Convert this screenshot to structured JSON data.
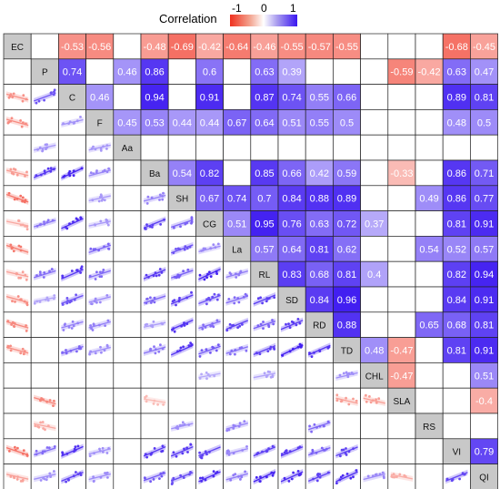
{
  "chart_data": {
    "type": "heatmap",
    "title": "",
    "legend": {
      "title": "Correlation",
      "ticks": [
        "-1",
        "0",
        "1"
      ],
      "range": [
        -1,
        1
      ],
      "colors": {
        "negative": "#f0301e",
        "zero": "#ffffff",
        "positive": "#3a16f0"
      },
      "placement": "top"
    },
    "variables": [
      "EC",
      "P",
      "C",
      "F",
      "Aa",
      "Ba",
      "SH",
      "CG",
      "La",
      "RL",
      "SD",
      "RD",
      "TD",
      "CHL",
      "SLA",
      "RS",
      "VI",
      "QI"
    ],
    "upper_triangle": [
      {
        "row": "EC",
        "values": [
          "",
          "-0.53",
          "-0.56",
          "",
          "-0.48",
          "-0.69",
          "-0.42",
          "-0.64",
          "-0.46",
          "-0.55",
          "-0.57",
          "-0.55",
          "",
          "",
          "",
          "-0.68",
          "-0.45"
        ]
      },
      {
        "row": "P",
        "values": [
          "0.74",
          "",
          "0.46",
          "0.86",
          "",
          "0.6",
          "",
          "0.63",
          "0.39",
          "",
          "",
          "",
          "-0.59",
          "-0.42",
          "0.63",
          "0.47"
        ]
      },
      {
        "row": "C",
        "values": [
          "0.46",
          "",
          "0.94",
          "",
          "0.91",
          "",
          "0.87",
          "0.74",
          "0.55",
          "0.66",
          "",
          "",
          "",
          "0.89",
          "0.81"
        ]
      },
      {
        "row": "F",
        "values": [
          "0.45",
          "0.53",
          "0.44",
          "0.44",
          "0.67",
          "0.64",
          "0.51",
          "0.55",
          "0.5",
          "",
          "",
          "",
          "0.48",
          "0.5"
        ]
      },
      {
        "row": "Aa",
        "values": [
          "",
          "",
          "",
          "",
          "",
          "",
          "",
          "",
          "",
          "",
          "",
          "",
          ""
        ]
      },
      {
        "row": "Ba",
        "values": [
          "0.54",
          "0.82",
          "",
          "0.85",
          "0.66",
          "0.42",
          "0.59",
          "",
          "-0.33",
          "",
          "0.86",
          "0.71"
        ]
      },
      {
        "row": "SH",
        "values": [
          "0.67",
          "0.74",
          "0.7",
          "0.84",
          "0.88",
          "0.89",
          "",
          "",
          "0.49",
          "0.86",
          "0.77"
        ]
      },
      {
        "row": "CG",
        "values": [
          "0.51",
          "0.95",
          "0.76",
          "0.63",
          "0.72",
          "0.37",
          "",
          "",
          "0.81",
          "0.91"
        ]
      },
      {
        "row": "La",
        "values": [
          "0.57",
          "0.64",
          "0.81",
          "0.62",
          "",
          "",
          "0.54",
          "0.52",
          "0.57"
        ]
      },
      {
        "row": "RL",
        "values": [
          "0.83",
          "0.68",
          "0.81",
          "0.4",
          "",
          "",
          "0.82",
          "0.94"
        ]
      },
      {
        "row": "SD",
        "values": [
          "0.84",
          "0.96",
          "",
          "",
          "",
          "0.84",
          "0.91"
        ]
      },
      {
        "row": "RD",
        "values": [
          "0.88",
          "",
          "",
          "0.65",
          "0.68",
          "0.81"
        ]
      },
      {
        "row": "TD",
        "values": [
          "0.48",
          "-0.47",
          "",
          "0.81",
          "0.91"
        ]
      },
      {
        "row": "CHL",
        "values": [
          "-0.47",
          "",
          "",
          "0.51"
        ]
      },
      {
        "row": "SLA",
        "values": [
          "",
          "",
          "-0.4"
        ]
      },
      {
        "row": "RS",
        "values": [
          "",
          ""
        ]
      },
      {
        "row": "VI",
        "values": [
          "0.79"
        ]
      }
    ],
    "lower_triangle": "scatter plots with fitted trend lines where correlation is significant"
  }
}
